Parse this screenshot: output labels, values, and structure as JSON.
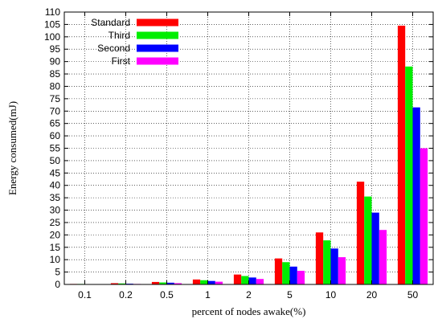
{
  "chart_data": {
    "type": "bar",
    "title": "",
    "xlabel": "percent of nodes awake(%)",
    "ylabel": "Energy consumed(mJ)",
    "ylim": [
      0,
      110
    ],
    "ytick_step": 5,
    "grid": true,
    "legend_position": "top-left",
    "categories": [
      "0.1",
      "0.2",
      "0.5",
      "1",
      "2",
      "5",
      "10",
      "20",
      "50"
    ],
    "series": [
      {
        "name": "Standard",
        "color": "#ff0000",
        "values": [
          0.2,
          0.5,
          1.0,
          2.0,
          4.0,
          10.5,
          21.0,
          41.5,
          104.5
        ]
      },
      {
        "name": "Third",
        "color": "#00ee00",
        "values": [
          0.2,
          0.4,
          0.8,
          1.7,
          3.4,
          9.0,
          17.8,
          35.5,
          88.0
        ]
      },
      {
        "name": "Second",
        "color": "#0000ff",
        "values": [
          0.1,
          0.3,
          0.7,
          1.4,
          2.8,
          7.2,
          14.5,
          29.0,
          71.5
        ]
      },
      {
        "name": "First",
        "color": "#ff00ff",
        "values": [
          0.1,
          0.2,
          0.5,
          1.1,
          2.2,
          5.5,
          11.0,
          22.0,
          55.0
        ]
      }
    ]
  }
}
